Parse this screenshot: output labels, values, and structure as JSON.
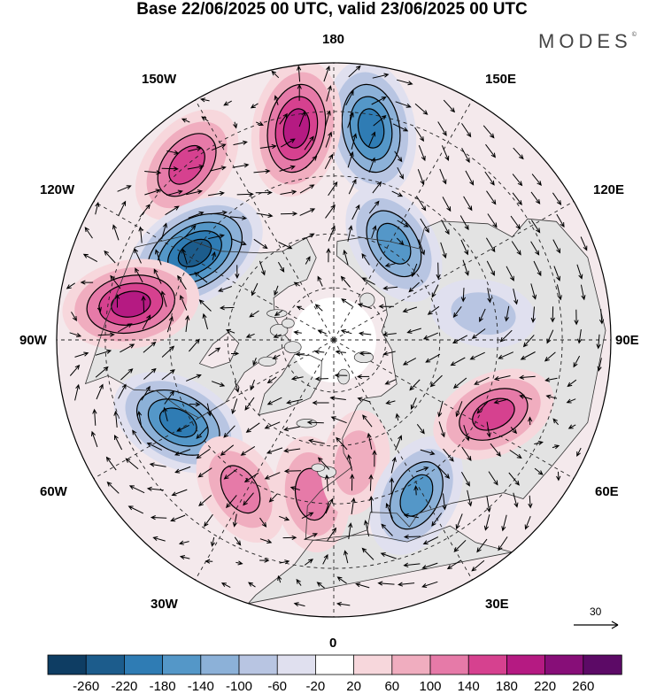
{
  "header": {
    "title": "Base 22/06/2025 00 UTC, valid 23/06/2025 00 UTC",
    "brand": "MODES",
    "brand_mark": "©"
  },
  "map": {
    "projection": "north-polar-stereographic",
    "longitude_labels": {
      "top": "180",
      "bottom": "0",
      "left": "90W",
      "right": "90E",
      "upper_left_1": "150W",
      "upper_left_2": "120W",
      "upper_right_1": "150E",
      "upper_right_2": "120E",
      "lower_left_1": "60W",
      "lower_left_2": "30W",
      "lower_right_1": "60E",
      "lower_right_2": "30E"
    },
    "graticule": "dashed",
    "coastlines": true,
    "wind_vectors": true,
    "contour_lines": true
  },
  "reference_vector": {
    "label": "30"
  },
  "colorbar": {
    "ticks": [
      "-260",
      "-220",
      "-180",
      "-140",
      "-100",
      "-60",
      "-20",
      "20",
      "60",
      "100",
      "140",
      "180",
      "220",
      "260"
    ],
    "colors": [
      "#0e3d63",
      "#1c5c8c",
      "#2f7cb4",
      "#5497c8",
      "#8cb1d8",
      "#b8c5e2",
      "#e0e0ef",
      "#ffffff",
      "#f7d7dc",
      "#f0adbf",
      "#e67aa8",
      "#d6418f",
      "#b51a82",
      "#870e78",
      "#5c0a66"
    ]
  },
  "features": {
    "anomalies": [
      {
        "sign": "neg",
        "lat": 33,
        "lon": 170,
        "value": -200
      },
      {
        "sign": "pos",
        "lat": 33,
        "lon": -170,
        "value": 190
      },
      {
        "sign": "pos",
        "lat": 30,
        "lon": -140,
        "value": 160
      },
      {
        "sign": "neg",
        "lat": 45,
        "lon": -122,
        "value": -230
      },
      {
        "sign": "pos",
        "lat": 35,
        "lon": -100,
        "value": 210
      },
      {
        "sign": "neg",
        "lat": 42,
        "lon": -62,
        "value": -190
      },
      {
        "sign": "pos",
        "lat": 42,
        "lon": -32,
        "value": 110
      },
      {
        "sign": "pos",
        "lat": 47,
        "lon": -8,
        "value": 130
      },
      {
        "sign": "pos",
        "lat": 55,
        "lon": 10,
        "value": 90
      },
      {
        "sign": "neg",
        "lat": 42,
        "lon": 28,
        "value": -160
      },
      {
        "sign": "pos",
        "lat": 42,
        "lon": 65,
        "value": 150
      },
      {
        "sign": "neg",
        "lat": 48,
        "lon": 100,
        "value": -60
      },
      {
        "sign": "neg",
        "lat": 58,
        "lon": 148,
        "value": -150
      }
    ]
  }
}
